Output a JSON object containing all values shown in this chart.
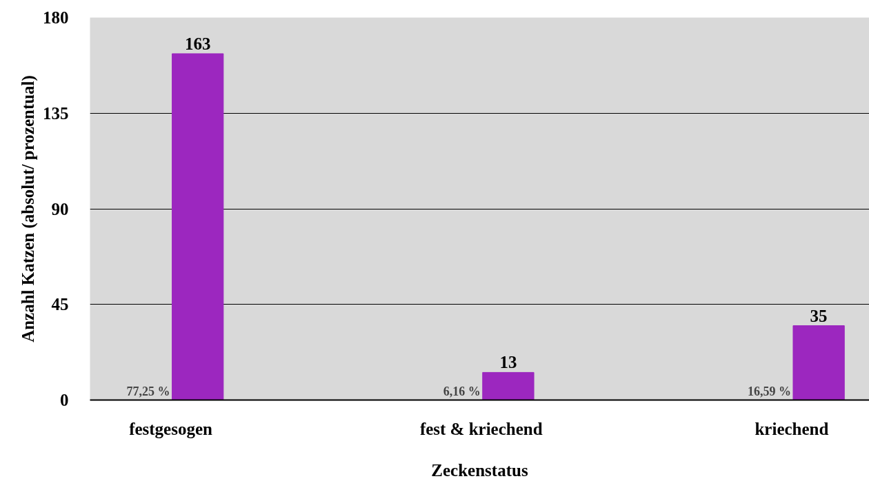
{
  "chart_data": {
    "type": "bar",
    "xlabel": "Zeckenstatus",
    "ylabel": "Anzahl Katzen (absolut/ prozentual)",
    "categories": [
      "festgesogen",
      "fest & kriechend",
      "kriechend"
    ],
    "series": [
      {
        "color": "#9c27bf",
        "values": [
          163,
          13,
          35
        ]
      }
    ],
    "data_labels": true,
    "ylim": [
      0,
      180
    ],
    "yticks": [
      0,
      45,
      90,
      135,
      180
    ],
    "grid": "y",
    "annotations": [
      {
        "text": "77,25 %",
        "x": "festgesogen",
        "y": 0
      },
      {
        "text": "6,16 %",
        "x": "fest & kriechend",
        "y": 0
      },
      {
        "text": "16,59 %",
        "x": "kriechend",
        "y": 0
      }
    ]
  }
}
